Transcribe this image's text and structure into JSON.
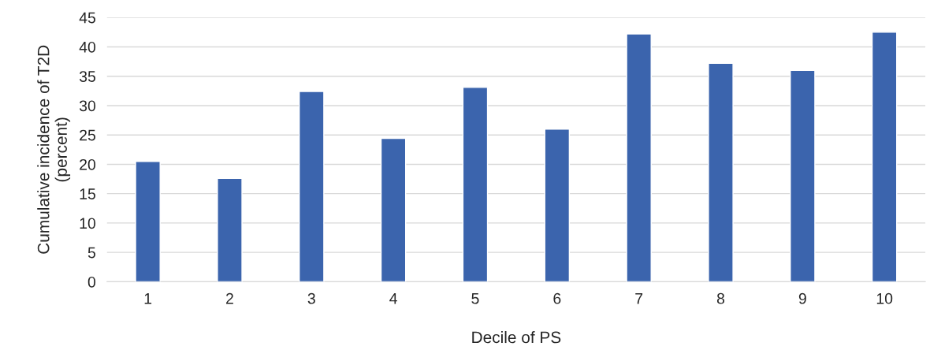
{
  "chart_data": {
    "type": "bar",
    "xlabel": "Decile of PS",
    "ylabel": "Cumulative incidence of T2D\n(percent)",
    "categories": [
      "1",
      "2",
      "3",
      "4",
      "5",
      "6",
      "7",
      "8",
      "9",
      "10"
    ],
    "values": [
      20.5,
      17.6,
      32.4,
      24.4,
      33.1,
      26.0,
      42.2,
      37.2,
      36.0,
      42.5
    ],
    "color": "#3b64ad",
    "ylim": [
      0,
      45
    ],
    "yticks": [
      0,
      5,
      10,
      15,
      20,
      25,
      30,
      35,
      40,
      45
    ],
    "grid": "y"
  }
}
